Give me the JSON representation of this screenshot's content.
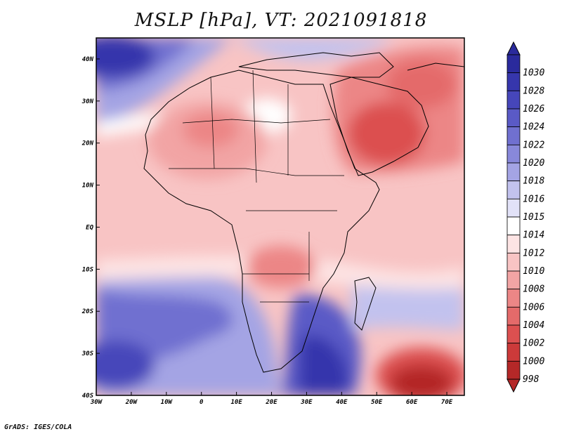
{
  "title": "MSLP [hPa], VT: 2021091818",
  "credit": "GrADS: IGES/COLA",
  "map": {
    "lon_range": [
      -30,
      75
    ],
    "lat_range": [
      -40,
      45
    ],
    "lat_ticks": [
      {
        "label": "40N",
        "lat": 40
      },
      {
        "label": "30N",
        "lat": 30
      },
      {
        "label": "20N",
        "lat": 20
      },
      {
        "label": "10N",
        "lat": 10
      },
      {
        "label": "EQ",
        "lat": 0
      },
      {
        "label": "10S",
        "lat": -10
      },
      {
        "label": "20S",
        "lat": -20
      },
      {
        "label": "30S",
        "lat": -30
      },
      {
        "label": "40S",
        "lat": -40
      }
    ],
    "lon_ticks": [
      {
        "label": "30W",
        "lon": -30
      },
      {
        "label": "20W",
        "lon": -20
      },
      {
        "label": "10W",
        "lon": -10
      },
      {
        "label": "0",
        "lon": 0
      },
      {
        "label": "10E",
        "lon": 10
      },
      {
        "label": "20E",
        "lon": 20
      },
      {
        "label": "30E",
        "lon": 30
      },
      {
        "label": "40E",
        "lon": 40
      },
      {
        "label": "50E",
        "lon": 50
      },
      {
        "label": "60E",
        "lon": 60
      },
      {
        "label": "70E",
        "lon": 70
      }
    ]
  },
  "colorbar": {
    "levels": [
      {
        "label": "1030",
        "color": "#2a2a9c"
      },
      {
        "label": "1028",
        "color": "#3636ac"
      },
      {
        "label": "1026",
        "color": "#4646ba"
      },
      {
        "label": "1024",
        "color": "#5a5ac6"
      },
      {
        "label": "1022",
        "color": "#7070d0"
      },
      {
        "label": "1020",
        "color": "#8888da"
      },
      {
        "label": "1018",
        "color": "#a4a4e4"
      },
      {
        "label": "1016",
        "color": "#c2c2ee"
      },
      {
        "label": "1015",
        "color": "#e2e2f8"
      },
      {
        "label": "1014",
        "color": "#ffffff"
      },
      {
        "label": "1012",
        "color": "#fde4e4"
      },
      {
        "label": "1010",
        "color": "#f8c4c4"
      },
      {
        "label": "1008",
        "color": "#f2a4a4"
      },
      {
        "label": "1006",
        "color": "#ec8686"
      },
      {
        "label": "1004",
        "color": "#e46a6a"
      },
      {
        "label": "1002",
        "color": "#dc5050"
      },
      {
        "label": "1000",
        "color": "#cc3a3a"
      },
      {
        "label": "998",
        "color": "#b42828"
      }
    ]
  }
}
